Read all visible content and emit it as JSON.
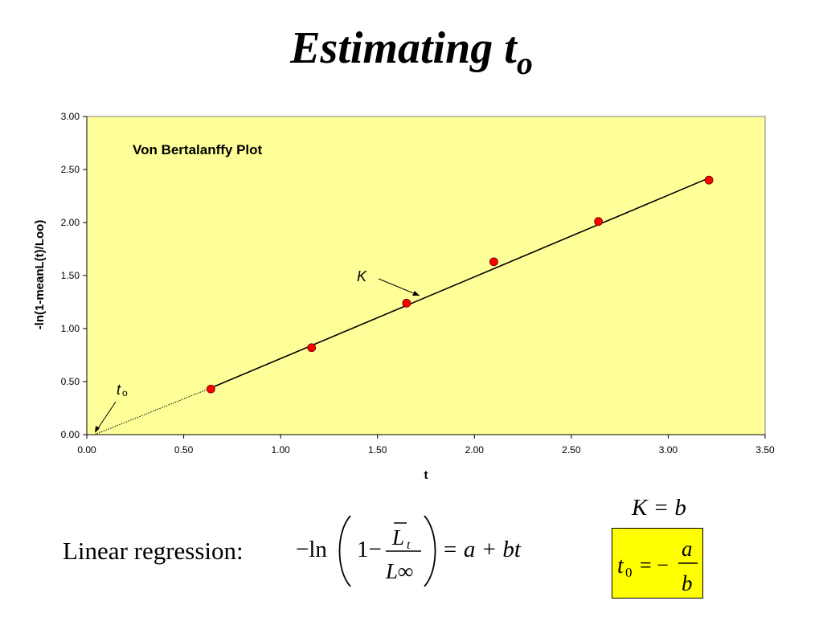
{
  "slide": {
    "title_main": "Estimating t",
    "title_sub": "o"
  },
  "chart_data": {
    "type": "scatter",
    "title": "Von Bertalanffy Plot",
    "xlabel": "t",
    "ylabel": "-ln(1-meanL(t)/Loo)",
    "xlim": [
      0,
      3.5
    ],
    "ylim": [
      0,
      3.0
    ],
    "xticks": [
      "0.00",
      "0.50",
      "1.00",
      "1.50",
      "2.00",
      "2.50",
      "3.00",
      "3.50"
    ],
    "yticks": [
      "0.00",
      "0.50",
      "1.00",
      "1.50",
      "2.00",
      "2.50",
      "3.00"
    ],
    "grid": false,
    "background": "#ffff99",
    "marker_color": "#ff0000",
    "series": [
      {
        "x": [
          0.64,
          1.16,
          1.65,
          2.1,
          2.64,
          3.21
        ],
        "y": [
          0.43,
          0.82,
          1.24,
          1.63,
          2.01,
          2.4
        ]
      }
    ],
    "fit_line": {
      "x": [
        0.64,
        3.21
      ],
      "y": [
        0.44,
        2.42
      ]
    },
    "extrapolation": {
      "x": [
        0.04,
        0.64
      ],
      "y": [
        0.0,
        0.44
      ]
    },
    "annotations": {
      "k_label": "K",
      "t0_label_main": "t",
      "t0_label_sub": "o"
    }
  },
  "formulas": {
    "regression_label": "Linear regression:",
    "neg_ln": "−ln",
    "one_minus": "1−",
    "numerator": "L",
    "numerator_sub": "t",
    "denominator": "L∞",
    "rhs": "= a + bt",
    "k_eq": "K = b",
    "t0_lhs": "t",
    "t0_lhs_sub": "0",
    "t0_eq": "= −",
    "t0_num": "a",
    "t0_den": "b",
    "box_color": "#ffff00"
  }
}
